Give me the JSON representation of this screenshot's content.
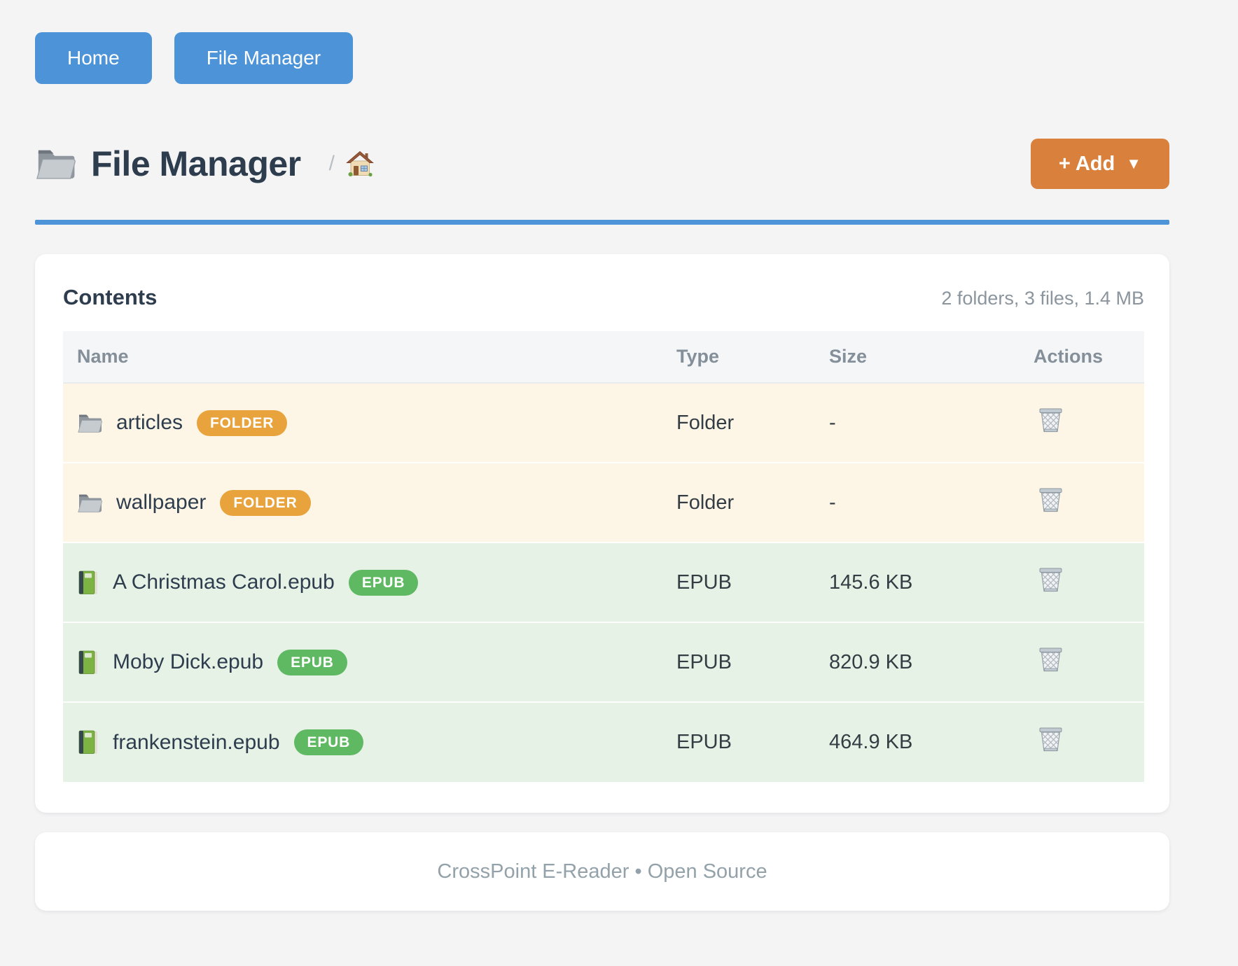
{
  "nav": {
    "home_label": "Home",
    "file_manager_label": "File Manager"
  },
  "header": {
    "title": "File Manager",
    "breadcrumb_separator": "/",
    "add_button_label": "+ Add",
    "add_button_caret": "▼"
  },
  "contents": {
    "title": "Contents",
    "summary": "2 folders, 3 files, 1.4 MB",
    "columns": [
      "Name",
      "Type",
      "Size",
      "Actions"
    ],
    "rows": [
      {
        "name": "articles",
        "badge": "FOLDER",
        "kind": "folder",
        "type": "Folder",
        "size": "-"
      },
      {
        "name": "wallpaper",
        "badge": "FOLDER",
        "kind": "folder",
        "type": "Folder",
        "size": "-"
      },
      {
        "name": "A Christmas Carol.epub",
        "badge": "EPUB",
        "kind": "epub",
        "type": "EPUB",
        "size": "145.6 KB"
      },
      {
        "name": "Moby Dick.epub",
        "badge": "EPUB",
        "kind": "epub",
        "type": "EPUB",
        "size": "820.9 KB"
      },
      {
        "name": "frankenstein.epub",
        "badge": "EPUB",
        "kind": "epub",
        "type": "EPUB",
        "size": "464.9 KB"
      }
    ]
  },
  "footer": {
    "text": "CrossPoint E-Reader • Open Source"
  },
  "icons": {
    "title_folder": "📁",
    "breadcrumb_home": "🏠",
    "folder_row": "📁",
    "epub_row": "📗",
    "delete": "🗑",
    "add_caret": "▼"
  },
  "colors": {
    "nav_button": "#4d93d8",
    "accent_rule": "#4d93d8",
    "add_button": "#d9813c",
    "folder_badge": "#e8a33d",
    "epub_badge": "#5fb862",
    "folder_row_bg": "#fdf6e6",
    "epub_row_bg": "#e7f2e7",
    "header_row_bg": "#f4f6f8",
    "page_bg": "#f4f4f5",
    "title_text": "#2e3d4e",
    "muted_text": "#8b959e"
  }
}
